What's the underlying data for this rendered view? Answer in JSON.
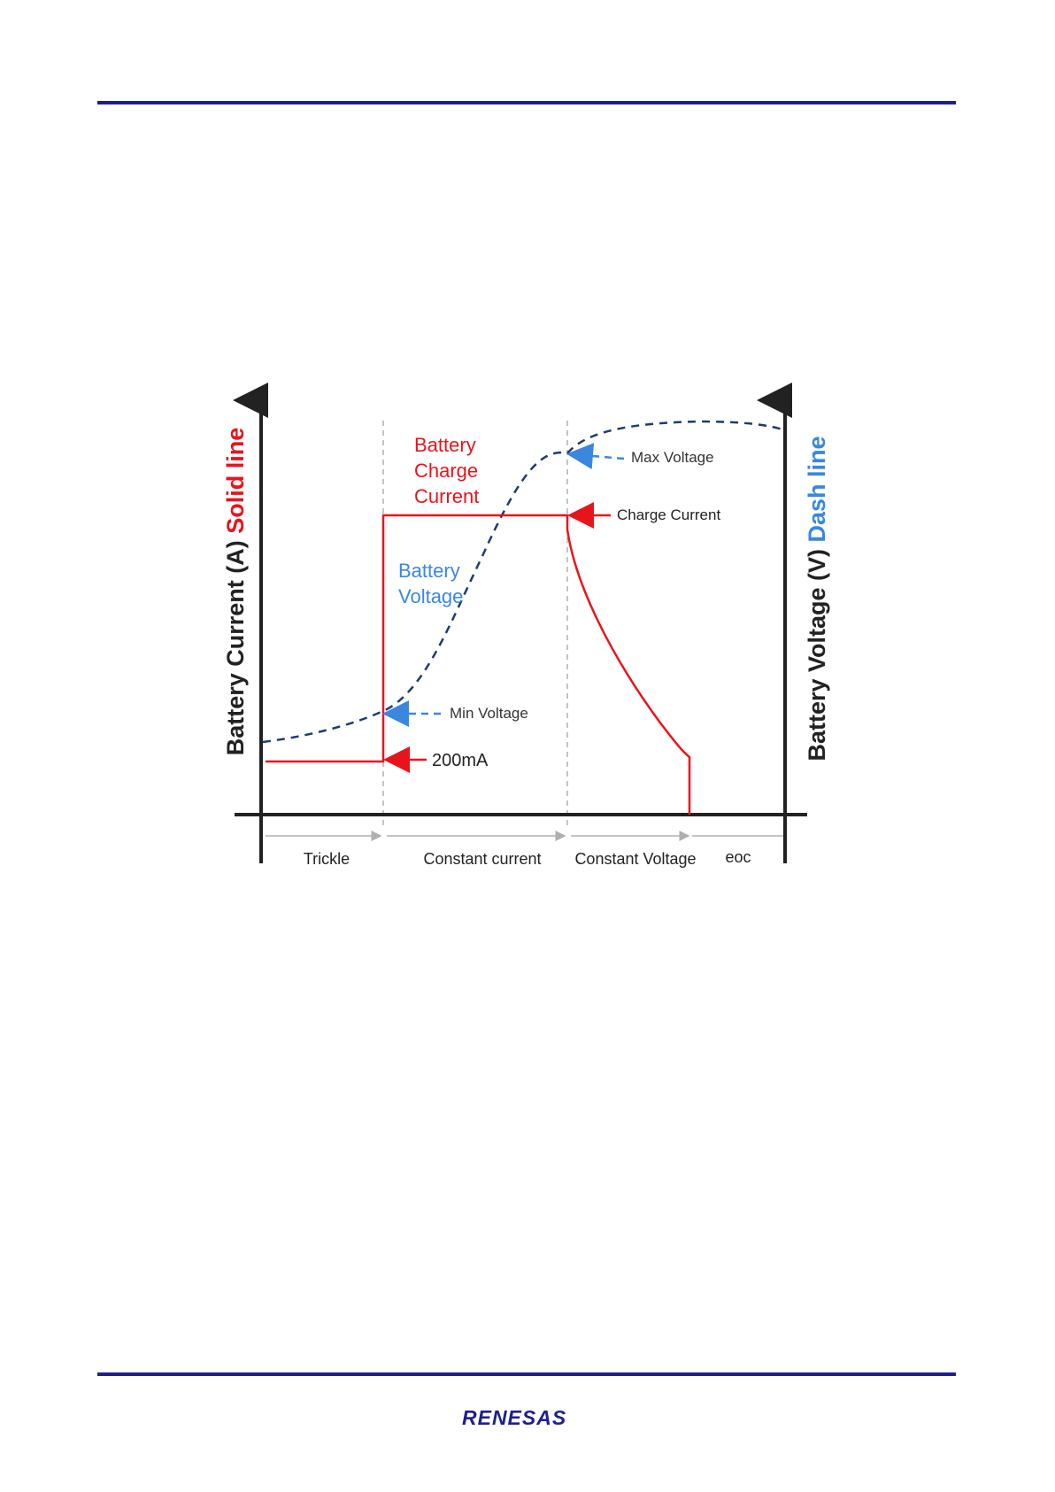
{
  "diagram": {
    "y_axis_left": {
      "label_main": "Battery Current (A) ",
      "label_accent": "Solid line"
    },
    "y_axis_right": {
      "label_main": "Battery Voltage (V) ",
      "label_accent": "Dash line"
    },
    "annotations": {
      "battery_charge_current": [
        "Battery",
        "Charge",
        "Current"
      ],
      "battery_voltage": [
        "Battery",
        "Voltage"
      ],
      "max_voltage": "Max Voltage",
      "charge_current": "Charge Current",
      "min_voltage": "Min Voltage",
      "trickle_current": "200mA"
    },
    "phases": [
      "Trickle",
      "Constant current",
      "Constant Voltage",
      "eoc"
    ]
  },
  "footer": {
    "logo_text": "RENESAS"
  },
  "colors": {
    "rule": "#1f1f8c",
    "current_line": "#e8141c",
    "voltage_line": "#1d3c6e",
    "voltage_label": "#3a87e0",
    "current_label": "#e8141c",
    "axis": "#222222",
    "phase_divider": "#b0b0b0"
  }
}
